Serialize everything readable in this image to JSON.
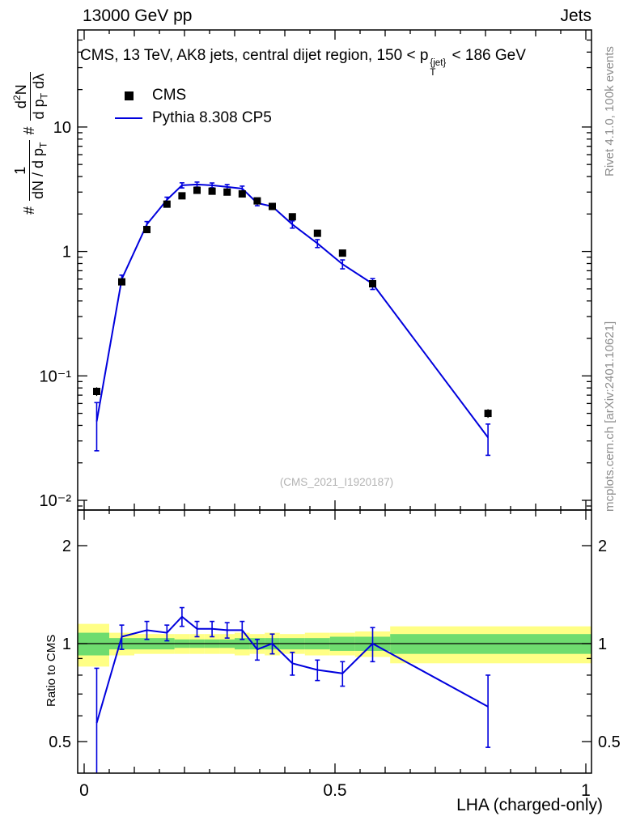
{
  "header": {
    "left": "13000 GeV pp",
    "right": "Jets"
  },
  "side_notes": {
    "right_top": "Rivet 4.1.0, 100k events",
    "right_bottom": "mcplots.cern.ch [arXiv:2401.10621]"
  },
  "watermark": "(CMS_2021_I1920187)",
  "title": {
    "pre": "CMS, 13 TeV, AK8 jets, central dijet region, 150 < p",
    "sup": "{jet}",
    "sub": "T",
    "post": " < 186 GeV"
  },
  "ylabel": {
    "hash1": "#",
    "frac1_num": "1",
    "frac1_den_pre": "dN / d p",
    "frac1_den_sub": "T",
    "hash2": "#",
    "frac2_num_pre": "d",
    "frac2_num_sup": "2",
    "frac2_num_post": "N",
    "frac2_den_pre": "d p",
    "frac2_den_sub": "T",
    "frac2_den_post": " dλ"
  },
  "chart_data": {
    "type": "line",
    "title": "CMS, 13 TeV, AK8 jets, central dijet region, 150 < pT{jet} < 186 GeV",
    "xlabel": "LHA (charged-only)",
    "ylabel": "# 1/(dN/dpT) # d2N/(dpT dLambda)",
    "ratio_ylabel": "Ratio to CMS",
    "y_scale": "log",
    "ratio_scale": "log",
    "xlim": [
      0,
      1
    ],
    "ylim": [
      0.01,
      60
    ],
    "ratio_ylim": [
      0.4,
      2.6
    ],
    "grid": false,
    "legend_position": "top-left",
    "x_ticks": {
      "values": [
        0,
        0.5,
        1
      ],
      "labels": [
        "0",
        "0.5",
        "1"
      ]
    },
    "y_ticks": {
      "values": [
        10,
        1,
        0.1,
        0.01
      ],
      "labels": [
        "10",
        "1",
        "10⁻¹",
        "10⁻²"
      ]
    },
    "ratio_ticks": {
      "values": [
        2,
        1,
        0.5
      ],
      "labels": [
        "2",
        "1",
        "0.5"
      ]
    },
    "colors": {
      "cms": "#000000",
      "pythia": "#0000dd",
      "band_yellow": "#ffff85",
      "band_green": "#6fdc6f"
    },
    "bin_edges": [
      0,
      0.05,
      0.1,
      0.15,
      0.18,
      0.21,
      0.24,
      0.27,
      0.3,
      0.33,
      0.36,
      0.39,
      0.44,
      0.49,
      0.54,
      0.61,
      1.0
    ],
    "x": [
      0.025,
      0.075,
      0.125,
      0.165,
      0.195,
      0.225,
      0.255,
      0.285,
      0.315,
      0.345,
      0.375,
      0.415,
      0.465,
      0.515,
      0.575,
      0.805
    ],
    "series": [
      {
        "name": "CMS",
        "marker": "square",
        "color": "#000000",
        "values": [
          0.075,
          0.57,
          1.5,
          2.4,
          2.8,
          3.1,
          3.05,
          3.0,
          2.9,
          2.55,
          2.3,
          1.9,
          1.4,
          0.97,
          0.55,
          0.05
        ],
        "errors": [
          0.006,
          0.03,
          0.07,
          0.1,
          0.12,
          0.13,
          0.13,
          0.12,
          0.12,
          0.11,
          0.1,
          0.08,
          0.06,
          0.045,
          0.03,
          0.004
        ]
      },
      {
        "name": "Pythia 8.308 CP5",
        "marker": "line",
        "color": "#0000dd",
        "values": [
          0.043,
          0.6,
          1.65,
          2.6,
          3.4,
          3.45,
          3.4,
          3.3,
          3.2,
          2.45,
          2.3,
          1.65,
          1.16,
          0.79,
          0.55,
          0.032
        ],
        "errors": [
          0.018,
          0.045,
          0.09,
          0.13,
          0.16,
          0.16,
          0.15,
          0.15,
          0.15,
          0.12,
          0.12,
          0.11,
          0.085,
          0.065,
          0.055,
          0.009
        ]
      }
    ],
    "ratio": {
      "reference": 1,
      "values": [
        0.57,
        1.05,
        1.1,
        1.08,
        1.21,
        1.11,
        1.11,
        1.1,
        1.1,
        0.96,
        1.0,
        0.87,
        0.83,
        0.81,
        1.0,
        0.64
      ],
      "errors": [
        0.27,
        0.09,
        0.07,
        0.06,
        0.08,
        0.06,
        0.06,
        0.06,
        0.07,
        0.07,
        0.07,
        0.07,
        0.06,
        0.07,
        0.12,
        0.16
      ],
      "band_yellow": {
        "lo": [
          0.85,
          0.92,
          0.93,
          0.93,
          0.93,
          0.93,
          0.93,
          0.93,
          0.92,
          0.93,
          0.92,
          0.93,
          0.92,
          0.92,
          0.91,
          0.87
        ],
        "hi": [
          1.15,
          1.08,
          1.07,
          1.07,
          1.07,
          1.07,
          1.07,
          1.07,
          1.08,
          1.07,
          1.08,
          1.07,
          1.08,
          1.08,
          1.09,
          1.13
        ]
      },
      "band_green": {
        "lo": [
          0.92,
          0.96,
          0.96,
          0.96,
          0.97,
          0.97,
          0.97,
          0.97,
          0.96,
          0.96,
          0.96,
          0.96,
          0.96,
          0.95,
          0.95,
          0.93
        ],
        "hi": [
          1.08,
          1.04,
          1.04,
          1.04,
          1.03,
          1.03,
          1.03,
          1.03,
          1.04,
          1.04,
          1.04,
          1.04,
          1.04,
          1.05,
          1.05,
          1.07
        ]
      }
    }
  }
}
